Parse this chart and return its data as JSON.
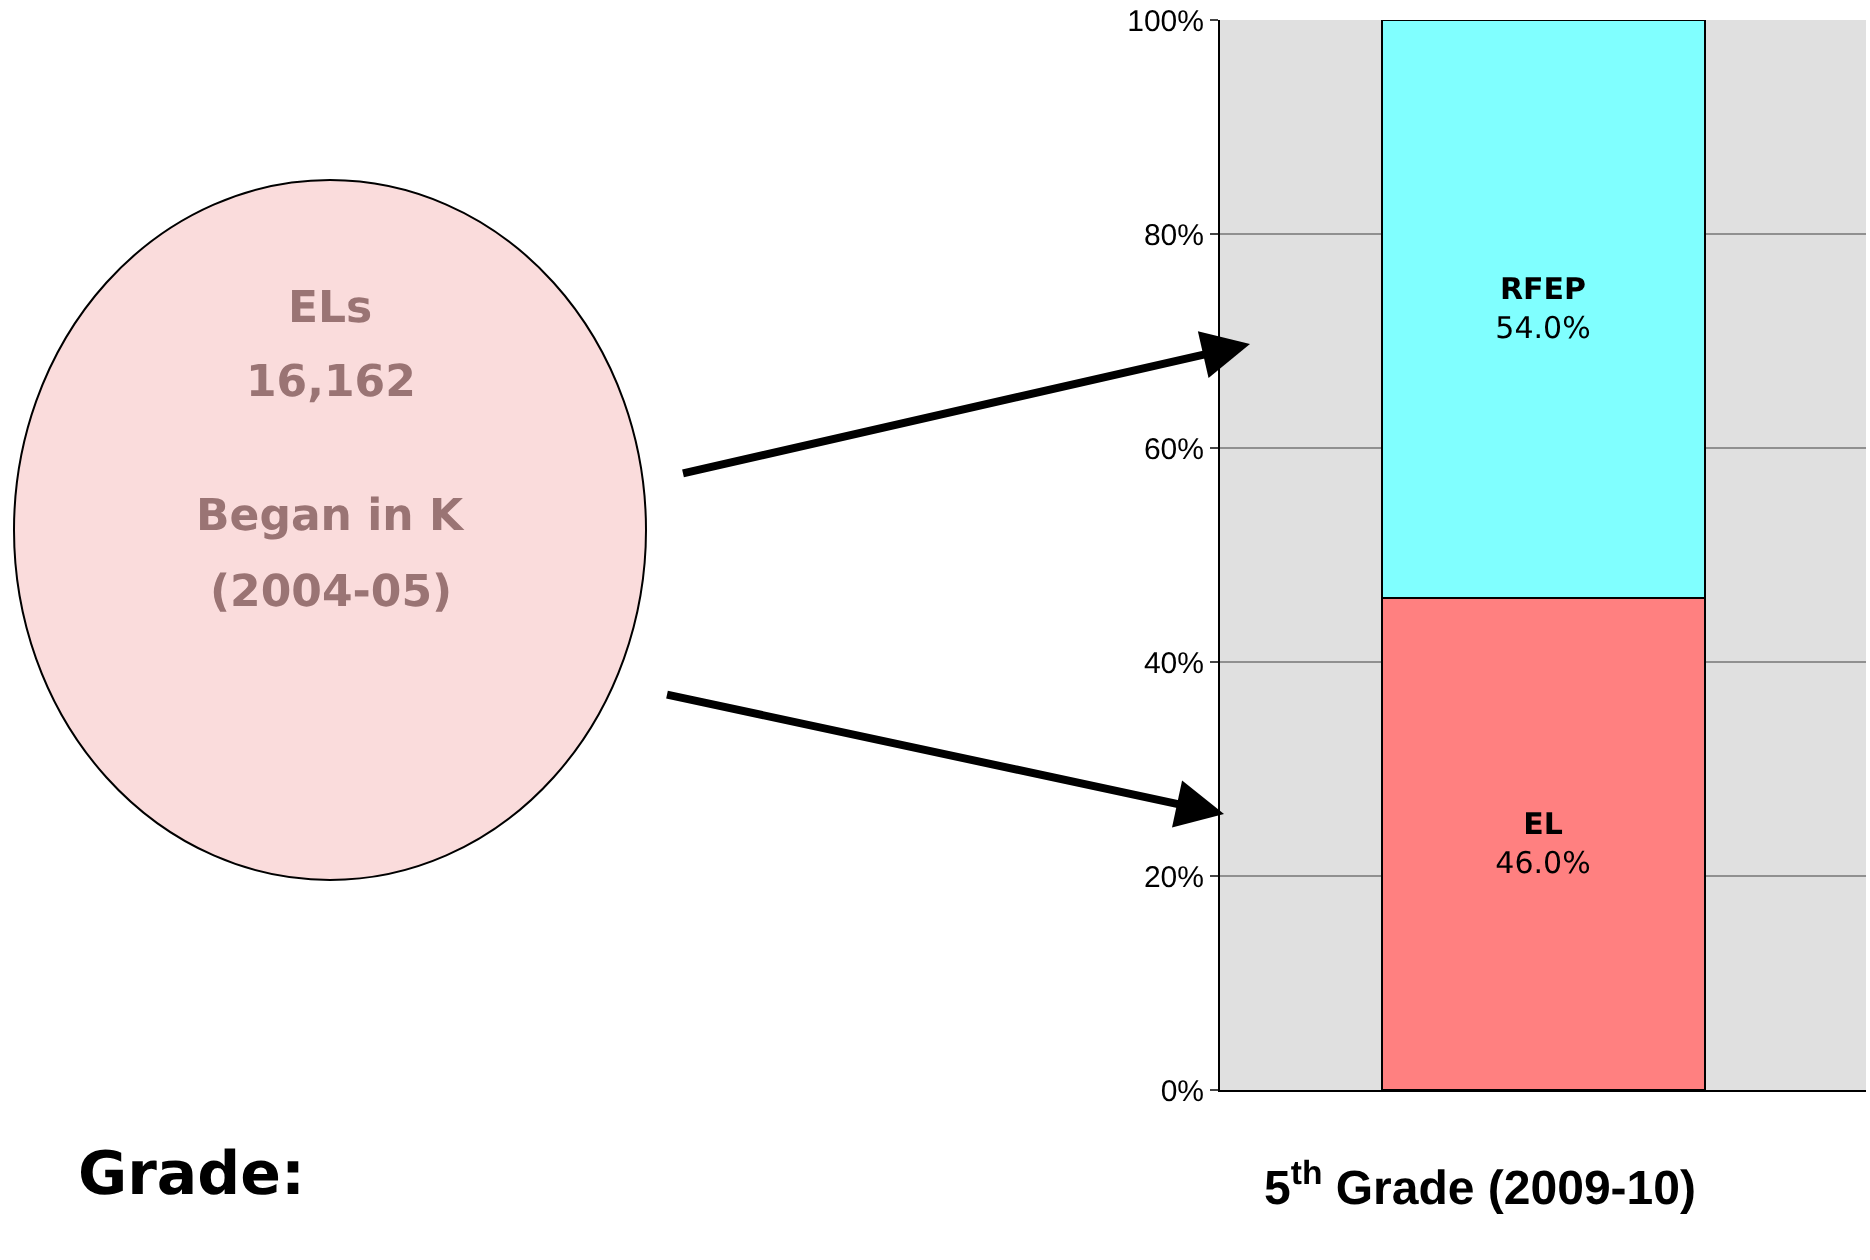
{
  "chart_data": {
    "type": "bar",
    "stacked": true,
    "categories": [
      null
    ],
    "xlabel": "5$^{th}$ Grade (2009-10)",
    "series": [
      {
        "name": "EL",
        "color": "#ff8080",
        "values": [
          46.0
        ],
        "value_labels": [
          "46.0%"
        ]
      },
      {
        "name": "RFEP",
        "color": "#80ffff",
        "values": [
          54.0
        ],
        "value_labels": [
          "54.0%"
        ]
      }
    ],
    "ylim": [
      0,
      100
    ],
    "yticks": [
      {
        "value": 0,
        "label": "0%"
      },
      {
        "value": 20,
        "label": "20%"
      },
      {
        "value": 40,
        "label": "40%"
      },
      {
        "value": 60,
        "label": "60%"
      },
      {
        "value": 80,
        "label": "80%"
      },
      {
        "value": 100,
        "label": "100%"
      }
    ],
    "grid": "y",
    "annotations": [
      "ELs",
      "16,162",
      "Began in K",
      "(2004-05)",
      "Grade:"
    ]
  }
}
